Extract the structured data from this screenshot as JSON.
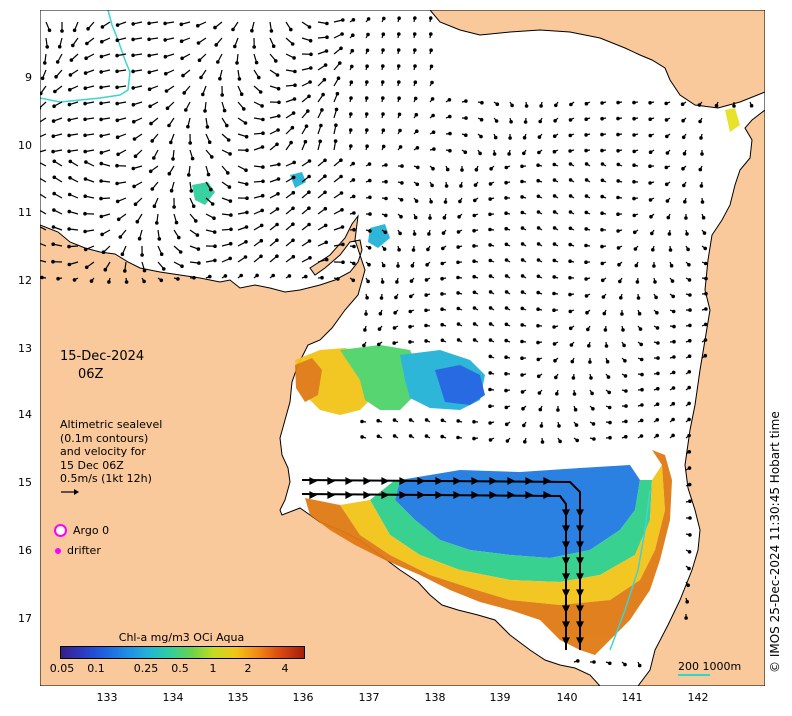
{
  "map": {
    "date_label": "15-Dec-2024",
    "time_label": "06Z",
    "velocity_info": [
      "Altimetric sealevel",
      "(0.1m contours)",
      "and velocity for",
      "15 Dec 06Z",
      "0.5m/s (1kt 12h)"
    ],
    "legend": {
      "argo_label": "Argo 0",
      "drifter_label": "drifter"
    },
    "colorbar": {
      "title": "Chl-a mg/m3 OCi Aqua",
      "ticks": [
        "0.05",
        "0.1",
        "0.25",
        "0.5",
        "1",
        "2",
        "4"
      ]
    },
    "scale_label": "200  1000m",
    "credit": "© IMOS 25-Dec-2024 11:30:45 Hobart time",
    "lat_ticks": [
      "9",
      "10",
      "11",
      "12",
      "13",
      "14",
      "15",
      "16",
      "17"
    ],
    "lon_ticks": [
      "133",
      "134",
      "135",
      "136",
      "137",
      "138",
      "139",
      "140",
      "141",
      "142"
    ],
    "colors": {
      "land": "#f9c89b",
      "sea": "#ffffff",
      "contour": "#3fd3d3",
      "argo": "#ff00ff"
    }
  }
}
